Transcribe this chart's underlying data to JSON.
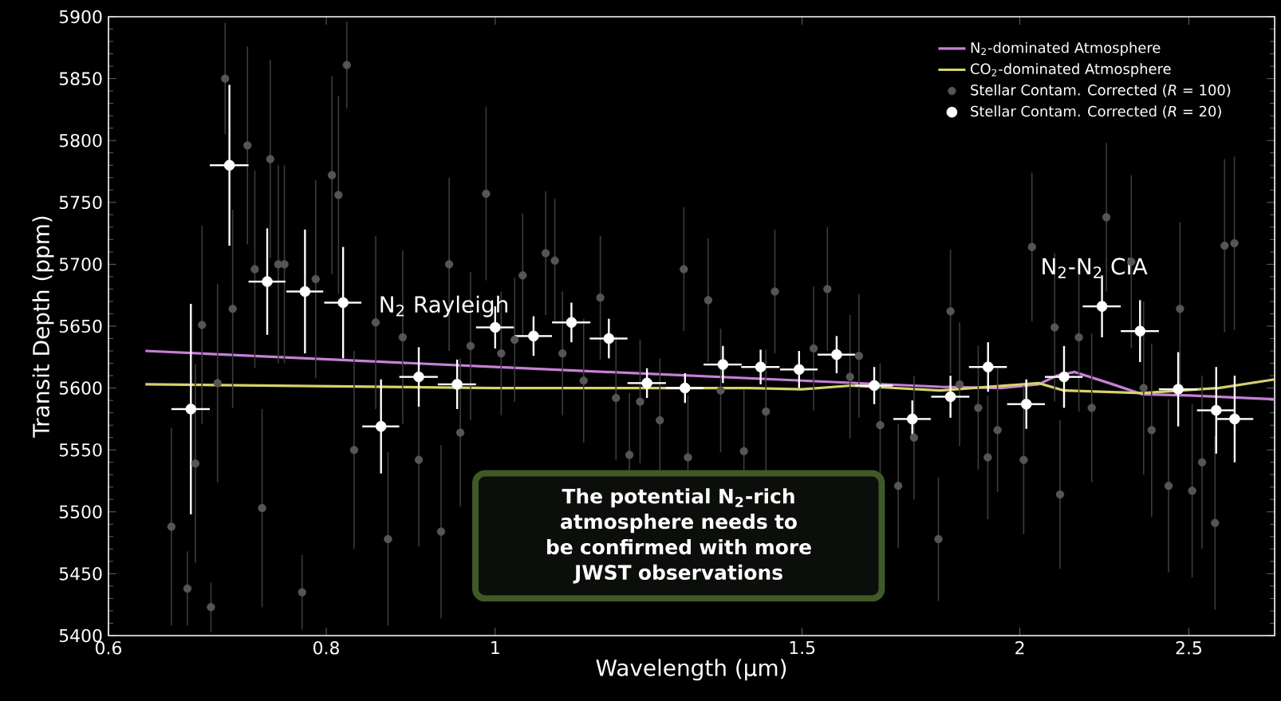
{
  "chart_data": {
    "type": "scatter",
    "xlabel": "Wavelength (µm)",
    "ylabel": "Transit Depth (ppm)",
    "log": "x",
    "xlim": [
      0.6,
      2.8
    ],
    "ylim": [
      5400,
      5900
    ],
    "xticks": [
      0.6,
      0.8,
      1,
      1.5,
      2,
      2.5
    ],
    "yticks": [
      5400,
      5450,
      5500,
      5550,
      5600,
      5650,
      5700,
      5750,
      5800,
      5850,
      5900
    ],
    "legend": "top right",
    "series": [
      {
        "name": "N$_{2}$-dominated Atmosphere",
        "type": "line",
        "marker": "none",
        "color": "#c87fd8",
        "x": [
          0.63,
          1.0,
          1.5,
          1.8,
          1.95,
          2.05,
          2.1,
          2.15,
          2.25,
          2.35,
          2.5,
          2.8
        ],
        "values": [
          5630,
          5617,
          5606,
          5601,
          5600,
          5603,
          5610,
          5613,
          5604,
          5595,
          5594,
          5591
        ]
      },
      {
        "name": "CO$_{2}$-dominated Atmosphere",
        "type": "line",
        "marker": "none",
        "color": "#d4d26a",
        "x": [
          0.63,
          1.0,
          1.2,
          1.4,
          1.5,
          1.6,
          1.8,
          2.05,
          2.12,
          2.35,
          2.6,
          2.8
        ],
        "values": [
          5603,
          5600,
          5600,
          5600,
          5599,
          5602,
          5598,
          5604,
          5598,
          5596,
          5600,
          5607
        ]
      },
      {
        "name": "Stellar Contam. Corrected (*R* = 100)",
        "type": "scatter",
        "marker": "circle",
        "color": "#555555",
        "x": [
          0.652,
          0.666,
          0.673,
          0.679,
          0.687,
          0.693,
          0.7,
          0.707,
          0.721,
          0.728,
          0.735,
          0.743,
          0.751,
          0.757,
          0.775,
          0.789,
          0.806,
          0.813,
          0.822,
          0.83,
          0.854,
          0.868,
          0.885,
          0.904,
          0.931,
          0.941,
          0.955,
          0.968,
          0.988,
          1.008,
          1.026,
          1.037,
          1.069,
          1.082,
          1.093,
          1.124,
          1.149,
          1.173,
          1.194,
          1.211,
          1.243,
          1.283,
          1.29,
          1.325,
          1.347,
          1.389,
          1.43,
          1.447,
          1.523,
          1.551,
          1.598,
          1.617,
          1.663,
          1.703,
          1.739,
          1.796,
          1.825,
          1.847,
          1.893,
          1.917,
          1.942,
          2.01,
          2.032,
          2.094,
          2.109,
          2.162,
          2.199,
          2.242,
          2.317,
          2.355,
          2.38,
          2.434,
          2.471,
          2.511,
          2.544,
          2.588,
          2.621,
          2.655
        ],
        "values": [
          5488,
          5438,
          5539,
          5651,
          5423,
          5604,
          5850,
          5664,
          5796,
          5696,
          5503,
          5785,
          5700,
          5700,
          5435,
          5688,
          5772,
          5756,
          5861,
          5550,
          5653,
          5478,
          5641,
          5542,
          5484,
          5700,
          5564,
          5634,
          5757,
          5628,
          5639,
          5691,
          5709,
          5703,
          5628,
          5606,
          5673,
          5592,
          5546,
          5589,
          5574,
          5696,
          5544,
          5671,
          5598,
          5549,
          5581,
          5678,
          5632,
          5680,
          5609,
          5626,
          5570,
          5521,
          5560,
          5478,
          5662,
          5603,
          5584,
          5544,
          5566,
          5542,
          5714,
          5649,
          5514,
          5641,
          5584,
          5738,
          5702,
          5600,
          5566,
          5521,
          5664,
          5517,
          5540,
          5491,
          5715,
          5717
        ],
        "errors": [
          80,
          30,
          80,
          80,
          20,
          80,
          45,
          80,
          80,
          80,
          80,
          80,
          80,
          80,
          30,
          80,
          80,
          80,
          35,
          80,
          70,
          70,
          70,
          70,
          70,
          70,
          60,
          60,
          70,
          50,
          50,
          50,
          50,
          50,
          50,
          50,
          50,
          50,
          50,
          50,
          50,
          50,
          50,
          50,
          50,
          50,
          50,
          50,
          50,
          50,
          50,
          50,
          50,
          50,
          50,
          50,
          50,
          50,
          50,
          50,
          50,
          60,
          60,
          60,
          60,
          60,
          60,
          60,
          70,
          70,
          70,
          70,
          70,
          70,
          70,
          70,
          70,
          70
        ]
      },
      {
        "name": "Stellar Contam. Corrected (*R* = 20)",
        "type": "scatter",
        "marker": "circle",
        "color": "#ffffff",
        "x": [
          0.669,
          0.704,
          0.74,
          0.778,
          0.818,
          0.86,
          0.904,
          0.951,
          1.0,
          1.052,
          1.106,
          1.162,
          1.222,
          1.285,
          1.351,
          1.42,
          1.494,
          1.57,
          1.65,
          1.735,
          1.825,
          1.918,
          2.017,
          2.12,
          2.229,
          2.344,
          2.465,
          2.592,
          2.656
        ],
        "values": [
          5583,
          5780,
          5686,
          5678,
          5669,
          5569,
          5609,
          5603,
          5649,
          5642,
          5653,
          5640,
          5604,
          5600,
          5619,
          5617,
          5615,
          5627,
          5602,
          5575,
          5593,
          5617,
          5587,
          5609,
          5666,
          5646,
          5599,
          5582,
          5575
        ],
        "errors": [
          85,
          65,
          43,
          50,
          45,
          38,
          24,
          20,
          17,
          16,
          16,
          16,
          12,
          12,
          15,
          14,
          15,
          15,
          15,
          15,
          17,
          20,
          20,
          25,
          25,
          25,
          30,
          35,
          35
        ],
        "xerrors": [
          0.017,
          0.018,
          0.018,
          0.019,
          0.02,
          0.021,
          0.023,
          0.024,
          0.025,
          0.026,
          0.028,
          0.029,
          0.031,
          0.032,
          0.034,
          0.036,
          0.037,
          0.039,
          0.041,
          0.043,
          0.046,
          0.048,
          0.05,
          0.053,
          0.056,
          0.059,
          0.062,
          0.065,
          0.066
        ]
      }
    ],
    "annotations": [
      {
        "text": "N$_{2}$ Rayleigh",
        "x": 0.851,
        "y": 5666
      },
      {
        "text": "N$_{2}$-N$_{2}$ CIA",
        "x": 2.04,
        "y": 5697
      },
      "The potential N$_{2}$-rich atmosphere needs to be confirmed with more JWST observations"
    ]
  }
}
